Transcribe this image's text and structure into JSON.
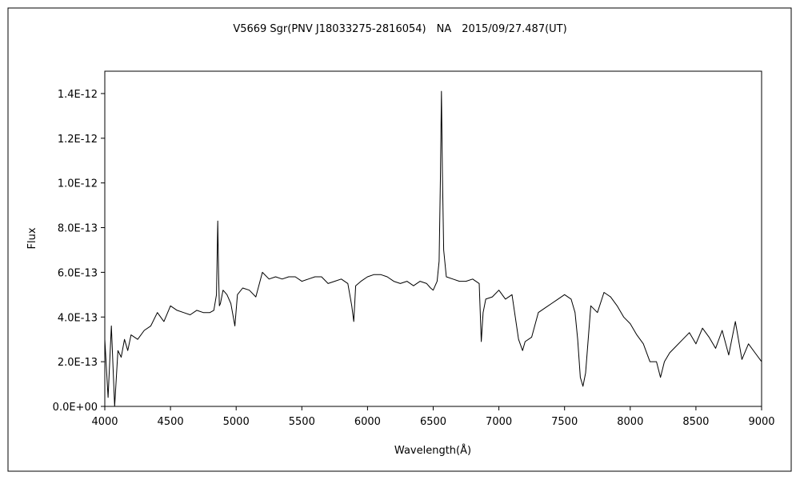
{
  "chart_data": {
    "type": "line",
    "title": "V5669 Sgr(PNV J18033275-2816054)　NA　2015/09/27.487(UT)",
    "xlabel": "Wavelength(Å)",
    "ylabel": "Flux",
    "xlim": [
      4000,
      9000
    ],
    "ylim": [
      0,
      1.5e-12
    ],
    "grid": false,
    "legend": "none",
    "x_ticks": [
      4000,
      4500,
      5000,
      5500,
      6000,
      6500,
      7000,
      7500,
      8000,
      8500,
      9000
    ],
    "x_tick_labels": [
      "4000",
      "4500",
      "5000",
      "5500",
      "6000",
      "6500",
      "7000",
      "7500",
      "8000",
      "8500",
      "9000"
    ],
    "y_ticks": [
      0,
      2e-13,
      4e-13,
      6e-13,
      8e-13,
      1e-12,
      1.2e-12,
      1.4e-12
    ],
    "y_tick_labels": [
      "0.0E+00",
      "2.0E-13",
      "4.0E-13",
      "6.0E-13",
      "8.0E-13",
      "1.0E-12",
      "1.2E-12",
      "1.4E-12"
    ],
    "line_color": "#000000",
    "series": [
      {
        "x": [
          4000,
          4025,
          4050,
          4075,
          4100,
          4125,
          4150,
          4175,
          4200,
          4250,
          4300,
          4350,
          4400,
          4450,
          4500,
          4550,
          4600,
          4650,
          4700,
          4750,
          4800,
          4830,
          4850,
          4860,
          4866,
          4872,
          4880,
          4900,
          4930,
          4960,
          4990,
          5010,
          5050,
          5100,
          5150,
          5200,
          5250,
          5300,
          5350,
          5400,
          5450,
          5500,
          5550,
          5600,
          5650,
          5700,
          5750,
          5800,
          5850,
          5880,
          5895,
          5910,
          5950,
          6000,
          6050,
          6100,
          6150,
          6200,
          6250,
          6300,
          6350,
          6400,
          6450,
          6480,
          6500,
          6530,
          6545,
          6555,
          6563,
          6570,
          6580,
          6600,
          6650,
          6700,
          6750,
          6800,
          6850,
          6866,
          6880,
          6900,
          6950,
          7000,
          7050,
          7100,
          7150,
          7180,
          7200,
          7250,
          7300,
          7350,
          7400,
          7450,
          7500,
          7550,
          7580,
          7600,
          7620,
          7640,
          7660,
          7700,
          7750,
          7800,
          7850,
          7900,
          7950,
          8000,
          8050,
          8100,
          8150,
          8200,
          8230,
          8260,
          8300,
          8350,
          8400,
          8450,
          8500,
          8550,
          8600,
          8650,
          8700,
          8750,
          8800,
          8850,
          8900,
          8950,
          9000
        ],
        "y": [
          3e-13,
          4e-14,
          3.6e-13,
          0.0,
          2.5e-13,
          2.2e-13,
          3e-13,
          2.5e-13,
          3.2e-13,
          3e-13,
          3.4e-13,
          3.6e-13,
          4.2e-13,
          3.8e-13,
          4.5e-13,
          4.3e-13,
          4.2e-13,
          4.1e-13,
          4.3e-13,
          4.2e-13,
          4.2e-13,
          4.3e-13,
          5e-13,
          8.3e-13,
          6e-13,
          4.5e-13,
          4.6e-13,
          5.2e-13,
          5e-13,
          4.6e-13,
          3.6e-13,
          5e-13,
          5.3e-13,
          5.2e-13,
          4.9e-13,
          6e-13,
          5.7e-13,
          5.8e-13,
          5.7e-13,
          5.8e-13,
          5.8e-13,
          5.6e-13,
          5.7e-13,
          5.8e-13,
          5.8e-13,
          5.5e-13,
          5.6e-13,
          5.7e-13,
          5.5e-13,
          4.5e-13,
          3.8e-13,
          5.4e-13,
          5.6e-13,
          5.8e-13,
          5.9e-13,
          5.9e-13,
          5.8e-13,
          5.6e-13,
          5.5e-13,
          5.6e-13,
          5.4e-13,
          5.6e-13,
          5.5e-13,
          5.3e-13,
          5.2e-13,
          5.6e-13,
          6.5e-13,
          1.02e-12,
          1.41e-12,
          1.05e-12,
          7e-13,
          5.8e-13,
          5.7e-13,
          5.6e-13,
          5.6e-13,
          5.7e-13,
          5.5e-13,
          2.9e-13,
          4.2e-13,
          4.8e-13,
          4.9e-13,
          5.2e-13,
          4.8e-13,
          5e-13,
          3e-13,
          2.5e-13,
          2.9e-13,
          3.1e-13,
          4.2e-13,
          4.4e-13,
          4.6e-13,
          4.8e-13,
          5e-13,
          4.8e-13,
          4.2e-13,
          3e-13,
          1.3e-13,
          9e-14,
          1.5e-13,
          4.5e-13,
          4.2e-13,
          5.1e-13,
          4.9e-13,
          4.5e-13,
          4e-13,
          3.7e-13,
          3.2e-13,
          2.8e-13,
          2e-13,
          2e-13,
          1.3e-13,
          2e-13,
          2.4e-13,
          2.7e-13,
          3e-13,
          3.3e-13,
          2.8e-13,
          3.5e-13,
          3.1e-13,
          2.6e-13,
          3.4e-13,
          2.3e-13,
          3.8e-13,
          2.1e-13,
          2.8e-13,
          2.4e-13,
          2e-13
        ]
      }
    ]
  }
}
